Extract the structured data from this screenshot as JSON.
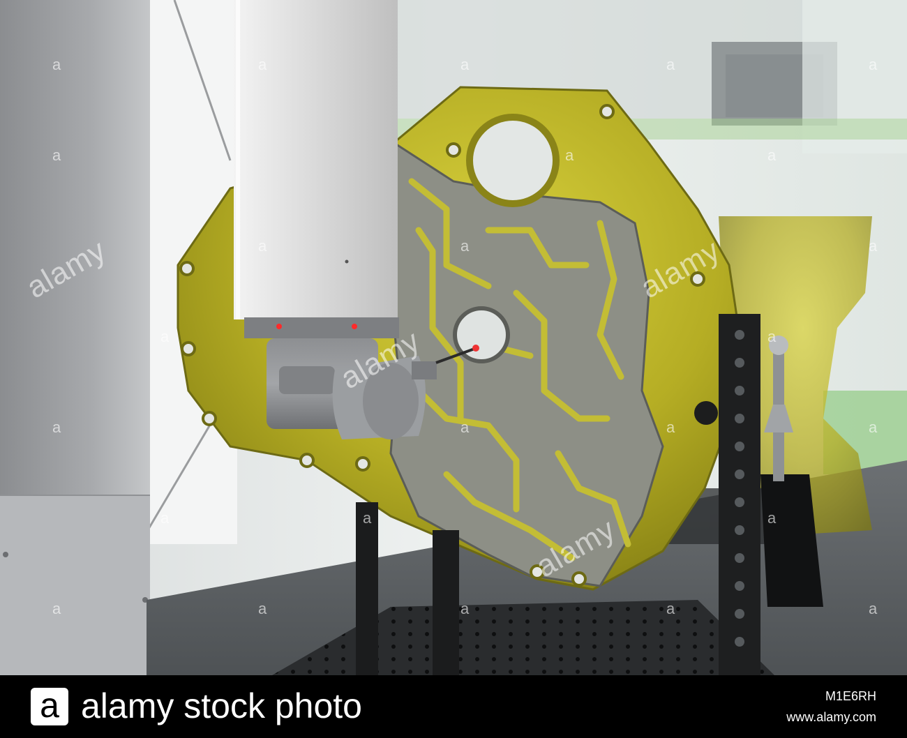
{
  "watermark": {
    "word": "alamy",
    "letter": "a"
  },
  "footer": {
    "logo_letter": "a",
    "brand_text": "alamy stock photo",
    "image_id": "M1E6RH",
    "site_url": "www.alamy.com"
  },
  "colors": {
    "footer_background": "#000000",
    "part_yellow": "#b8b22a",
    "granite_table": "#5f6366"
  },
  "icons": {
    "logo": "alamy-a-logo-icon"
  }
}
